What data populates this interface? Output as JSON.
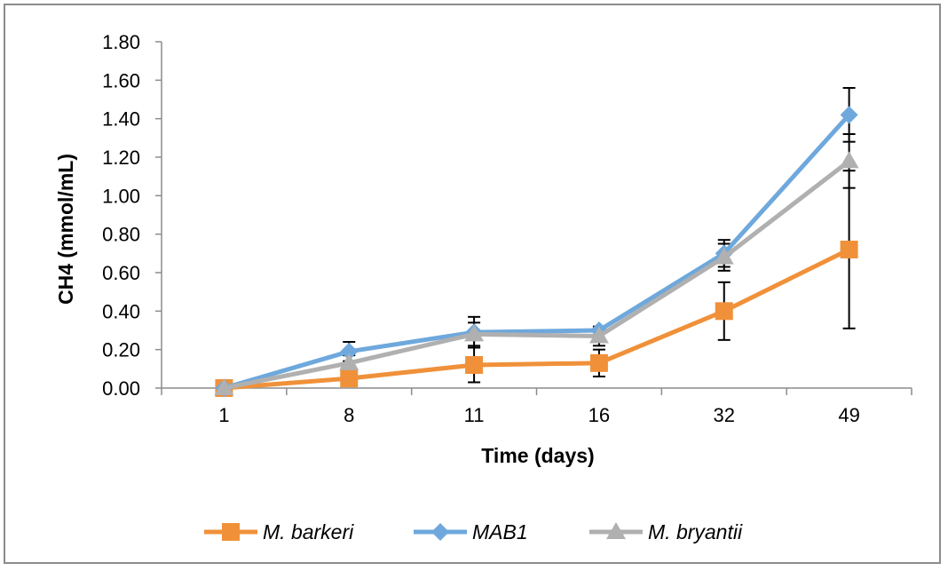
{
  "chart_data": {
    "type": "line",
    "xlabel": "Time (days)",
    "ylabel": "CH4 (mmol/mL)",
    "categories": [
      "1",
      "8",
      "11",
      "16",
      "32",
      "49"
    ],
    "ylim": [
      0,
      1.8
    ],
    "yticks": [
      "0.00",
      "0.20",
      "0.40",
      "0.60",
      "0.80",
      "1.00",
      "1.20",
      "1.40",
      "1.60",
      "1.80"
    ],
    "grid": false,
    "legend_position": "bottom",
    "series": [
      {
        "name": "M. barkeri",
        "color": "#f0913a",
        "marker": "square",
        "values": [
          0.0,
          0.05,
          0.12,
          0.13,
          0.4,
          0.72
        ],
        "error": [
          0.0,
          0.0,
          0.09,
          0.07,
          0.15,
          0.41
        ]
      },
      {
        "name": "MAB1",
        "color": "#6ea8dc",
        "marker": "diamond",
        "values": [
          0.0,
          0.19,
          0.29,
          0.3,
          0.7,
          1.42
        ],
        "error": [
          0.0,
          0.05,
          0.08,
          0.0,
          0.07,
          0.14
        ]
      },
      {
        "name": "M. bryantii",
        "color": "#b0b0b0",
        "marker": "triangle",
        "values": [
          0.0,
          0.13,
          0.28,
          0.27,
          0.68,
          1.18
        ],
        "error": [
          0.0,
          0.04,
          0.06,
          0.05,
          0.07,
          0.14
        ]
      }
    ]
  }
}
